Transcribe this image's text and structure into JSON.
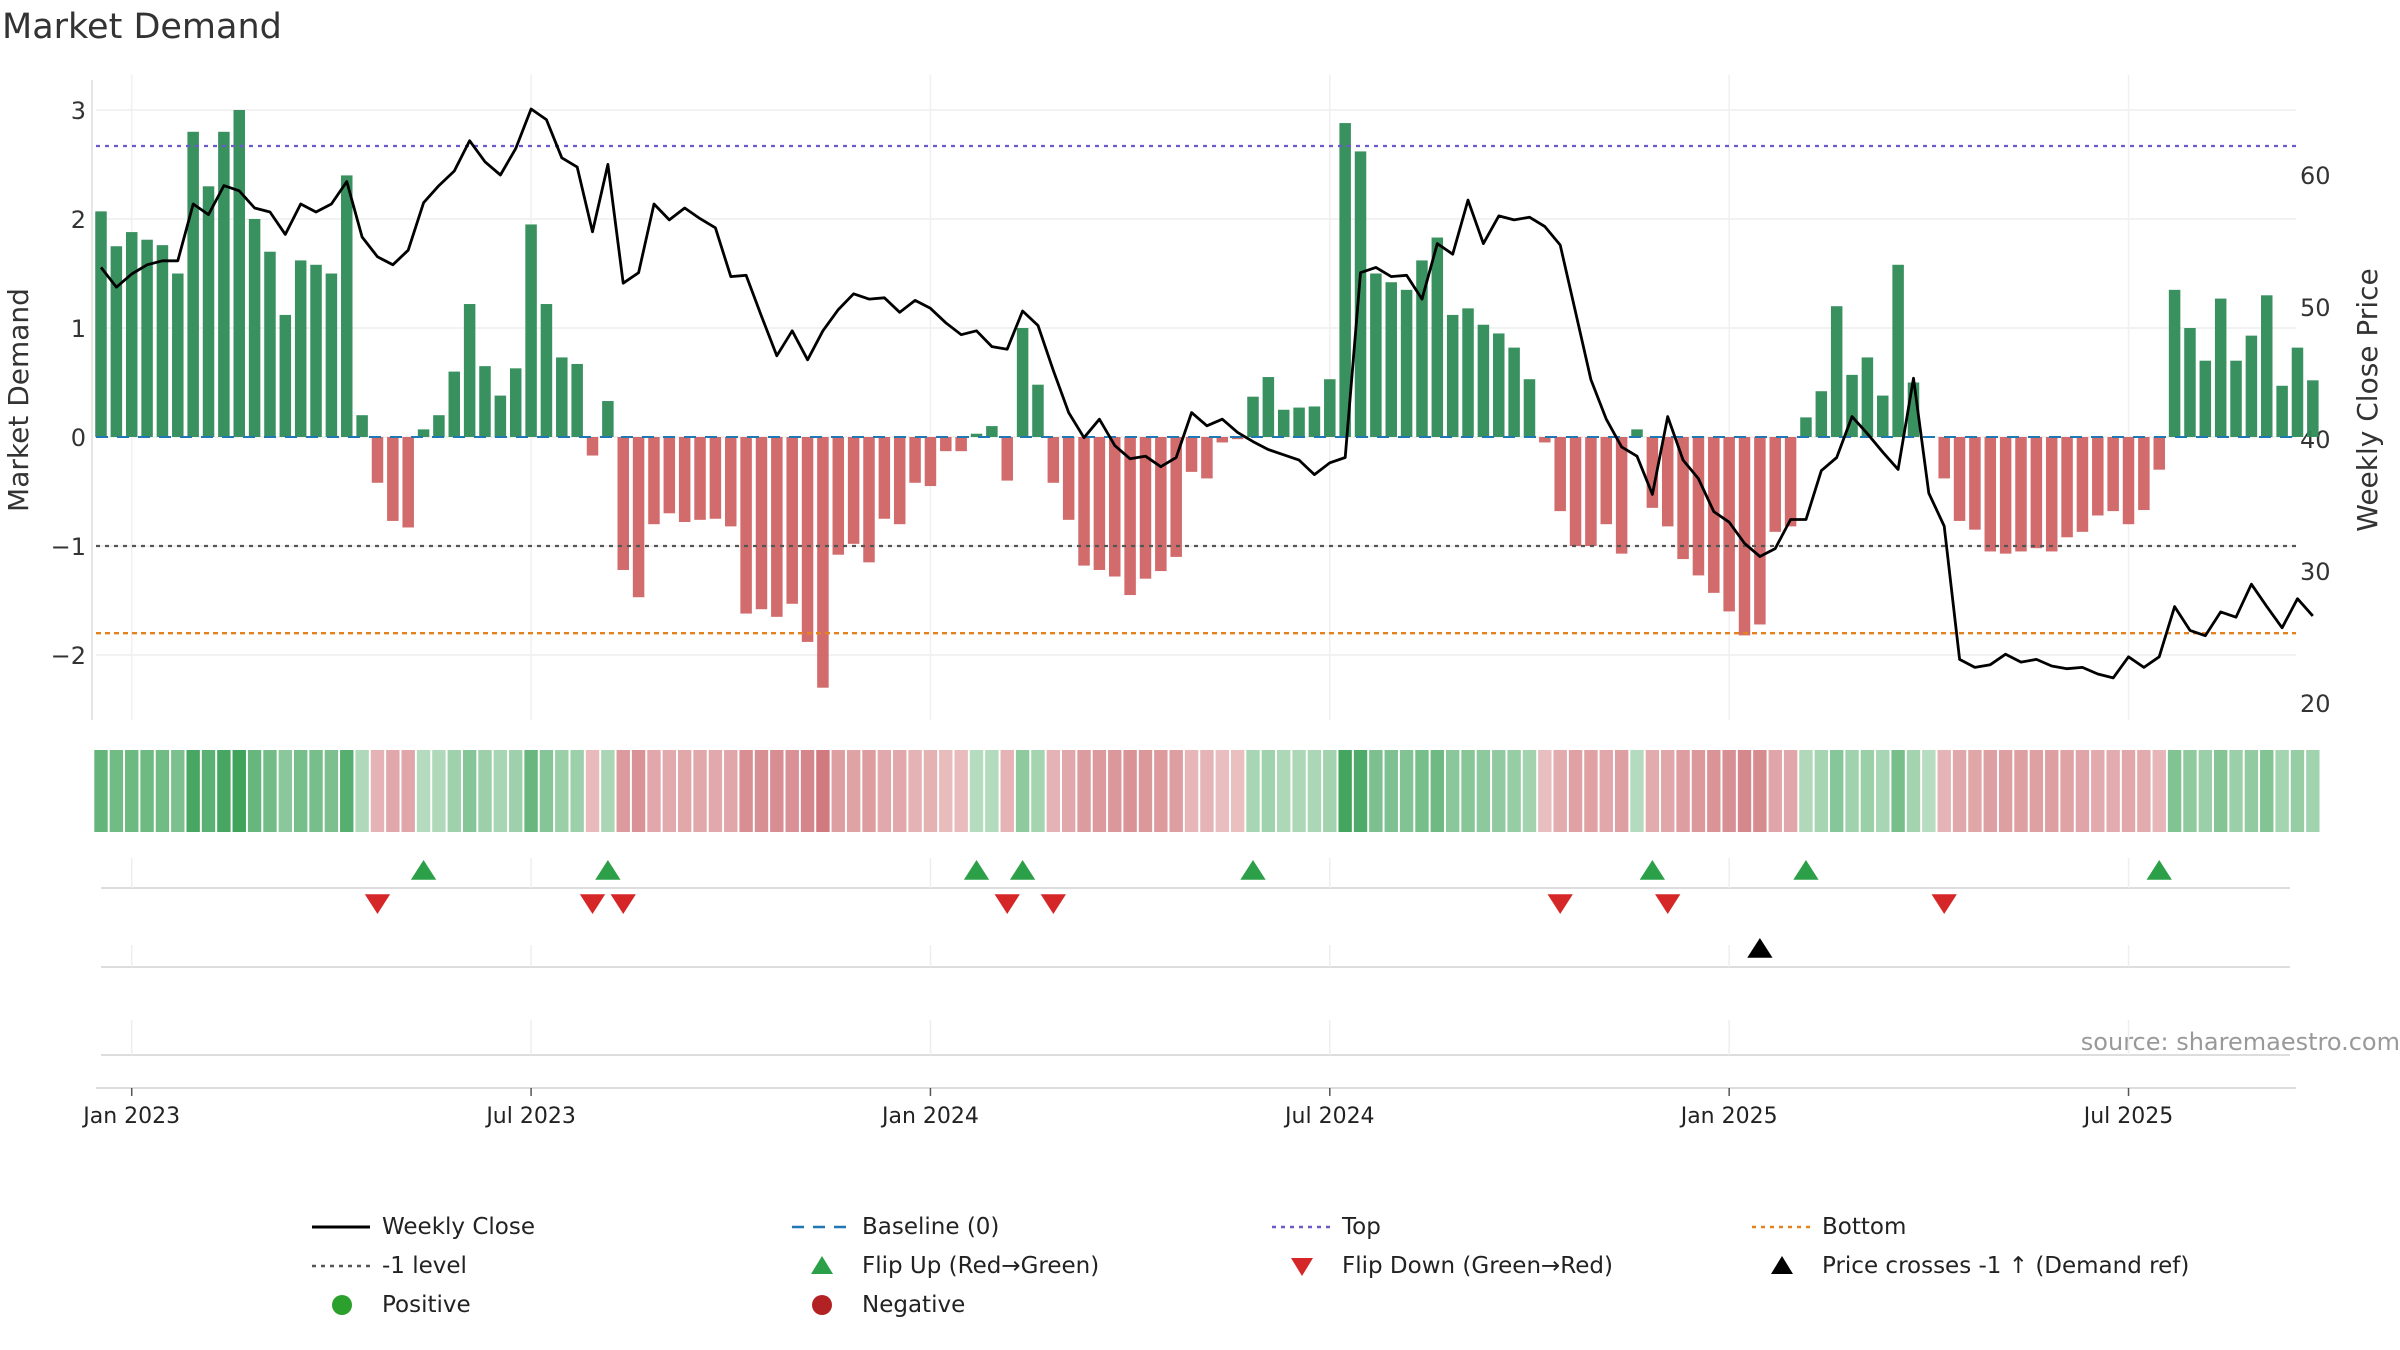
{
  "chart_data": {
    "type": "bar+line",
    "title": "Market Demand",
    "ylabel_left": "Market Demand",
    "ylabel_right": "Weekly Close Price",
    "ylim_left": [
      -2.6,
      3.2
    ],
    "ylim_right": [
      18,
      66
    ],
    "yticks_left": [
      3,
      2,
      1,
      0,
      -1,
      -2
    ],
    "yticks_left_labels": [
      "3",
      "2",
      "1",
      "0",
      "−1",
      "−2"
    ],
    "yticks_right": [
      60,
      50,
      40,
      30,
      20
    ],
    "x_tick_labels": [
      "Jan 2023",
      "Jul 2023",
      "Jan 2024",
      "Jul 2024",
      "Jan 2025",
      "Jul 2025"
    ],
    "x_tick_weeks": [
      2,
      28,
      54,
      80,
      106,
      132
    ],
    "start_week_label": "2022-12-19",
    "demand": [
      2.07,
      1.75,
      1.88,
      1.81,
      1.76,
      1.5,
      2.8,
      2.3,
      2.8,
      3.0,
      2.0,
      1.7,
      1.12,
      1.62,
      1.58,
      1.5,
      2.4,
      0.2,
      -0.42,
      -0.77,
      -0.83,
      0.07,
      0.2,
      0.6,
      1.22,
      0.65,
      0.38,
      0.63,
      1.95,
      1.22,
      0.73,
      0.67,
      -0.17,
      0.33,
      -1.22,
      -1.47,
      -0.8,
      -0.7,
      -0.78,
      -0.76,
      -0.75,
      -0.82,
      -1.62,
      -1.58,
      -1.65,
      -1.53,
      -1.88,
      -2.3,
      -1.08,
      -0.98,
      -1.15,
      -0.75,
      -0.8,
      -0.42,
      -0.45,
      -0.13,
      -0.13,
      0.03,
      0.1,
      -0.4,
      1.0,
      0.48,
      -0.42,
      -0.76,
      -1.18,
      -1.22,
      -1.28,
      -1.45,
      -1.3,
      -1.23,
      -1.1,
      -0.32,
      -0.38,
      -0.05,
      -0.02,
      0.37,
      0.55,
      0.25,
      0.27,
      0.28,
      0.53,
      2.88,
      2.62,
      1.5,
      1.42,
      1.35,
      1.62,
      1.83,
      1.12,
      1.18,
      1.03,
      0.95,
      0.82,
      0.53,
      -0.05,
      -0.68,
      -1.0,
      -1.0,
      -0.8,
      -1.07,
      0.07,
      -0.65,
      -0.82,
      -1.12,
      -1.27,
      -1.43,
      -1.6,
      -1.82,
      -1.72,
      -0.87,
      -0.82,
      0.18,
      0.42,
      1.2,
      0.57,
      0.73,
      0.38,
      1.58,
      0.5,
      0.0,
      -0.38,
      -0.77,
      -0.85,
      -1.05,
      -1.07,
      -1.05,
      -1.02,
      -1.05,
      -0.92,
      -0.87,
      -0.72,
      -0.68,
      -0.8,
      -0.67,
      -0.3,
      1.35,
      1.0,
      0.7,
      1.27,
      0.7,
      0.93,
      1.3,
      0.47,
      0.82,
      0.52
    ],
    "weekly_close": [
      53,
      51.5,
      52.5,
      53.2,
      53.5,
      53.5,
      57.8,
      57.0,
      59.2,
      58.8,
      57.5,
      57.2,
      55.5,
      57.8,
      57.2,
      57.8,
      59.5,
      55.3,
      53.8,
      53.2,
      54.3,
      57.9,
      59.2,
      60.3,
      62.6,
      61.0,
      60.0,
      62.0,
      65.0,
      64.2,
      61.3,
      60.6,
      55.7,
      60.8,
      51.8,
      52.6,
      57.8,
      56.6,
      57.5,
      56.7,
      56.0,
      52.3,
      52.4,
      49.3,
      46.3,
      48.2,
      46.0,
      48.2,
      49.8,
      51.0,
      50.6,
      50.7,
      49.6,
      50.5,
      49.9,
      48.8,
      47.9,
      48.2,
      47.0,
      46.8,
      49.7,
      48.6,
      45.2,
      42.0,
      40.1,
      41.5,
      39.5,
      38.5,
      38.7,
      37.9,
      38.6,
      42.0,
      41.0,
      41.5,
      40.5,
      39.8,
      39.2,
      38.8,
      38.4,
      37.3,
      38.2,
      38.6,
      52.6,
      53.0,
      52.3,
      52.4,
      50.6,
      54.8,
      54.0,
      58.1,
      54.8,
      56.9,
      56.6,
      56.8,
      56.1,
      54.7,
      49.6,
      44.5,
      41.5,
      39.4,
      38.7,
      35.8,
      41.7,
      38.4,
      37.0,
      34.5,
      33.7,
      32.1,
      31.1,
      31.7,
      33.9,
      33.9,
      37.6,
      38.6,
      41.7,
      40.4,
      39.0,
      37.7,
      44.6,
      35.9,
      33.4,
      23.3,
      22.7,
      22.9,
      23.7,
      23.1,
      23.3,
      22.8,
      22.6,
      22.7,
      22.2,
      21.9,
      23.5,
      22.7,
      23.5,
      27.3,
      25.5,
      25.1,
      26.9,
      26.5,
      29.0,
      27.3,
      25.7,
      27.9,
      26.6
    ],
    "color_strip": {
      "description": "per-week tint of demand value (green positive, red negative)"
    },
    "flip_up_weeks": [
      21,
      33,
      57,
      60,
      75,
      101,
      111,
      134
    ],
    "flip_down_weeks": [
      18,
      32,
      34,
      59,
      62,
      95,
      102,
      120
    ],
    "price_cross_weeks": [
      108
    ],
    "reference_lines": {
      "baseline": 0,
      "top": 2.67,
      "minus_one": -1,
      "bottom": -1.8
    },
    "annotation": "source: sharemaestro.com",
    "legend": [
      {
        "label": "Weekly Close",
        "symbol": "black-line"
      },
      {
        "label": "Baseline (0)",
        "symbol": "blue-dash"
      },
      {
        "label": "Top",
        "symbol": "purple-dot"
      },
      {
        "label": "Bottom",
        "symbol": "orange-dot"
      },
      {
        "label": "-1 level",
        "symbol": "gray-dot"
      },
      {
        "label": "Flip Up (Red→Green)",
        "symbol": "green-triangle-up"
      },
      {
        "label": "Flip Down (Green→Red)",
        "symbol": "red-triangle-down"
      },
      {
        "label": "Price crosses -1 ↑ (Demand ref)",
        "symbol": "black-triangle-up"
      },
      {
        "label": "Positive",
        "symbol": "green-dot"
      },
      {
        "label": "Negative",
        "symbol": "red-dot"
      }
    ],
    "colors": {
      "positive": "#2e8b57",
      "negative": "#cd5c5c",
      "flip_up": "#2ca048",
      "flip_down": "#d62728",
      "top_line": "#6a5acd",
      "bottom_line": "#e6821e",
      "minus_one_line": "#555555",
      "baseline": "#1f77b4",
      "price_line": "#000000",
      "positive_dot": "#2ca02c",
      "negative_dot": "#b22222"
    }
  }
}
